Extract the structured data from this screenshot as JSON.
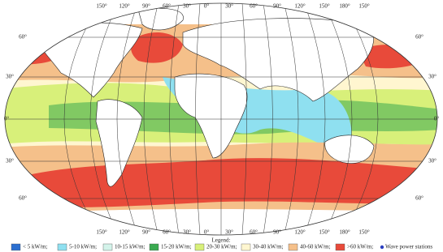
{
  "top_labels": [
    "150°",
    "120°",
    "90°",
    "60°",
    "30°",
    "0°",
    "30°",
    "60°",
    "90°",
    "120°",
    "150°",
    "180°",
    "150°"
  ],
  "bottom_labels": [
    "150°",
    "120°",
    "90°",
    "60°",
    "30°",
    "0°",
    "30°",
    "60°",
    "90°",
    "120°",
    "150°",
    "180°",
    "150°"
  ],
  "left_labels": [
    "60°",
    "30°",
    "0°",
    "30°",
    "60°"
  ],
  "right_labels": [
    "60°",
    "30°",
    "0°",
    "30°",
    "60°"
  ],
  "legend": {
    "title": "Legend:",
    "items": [
      {
        "label": "< 5 kW/m;",
        "color": "#2b6fd0"
      },
      {
        "label": "5-10 kW/m;",
        "color": "#8fe0f0"
      },
      {
        "label": "10-15 kW/m;",
        "color": "#d4f3ea"
      },
      {
        "label": "15-20 kW/m;",
        "color": "#3aaa50"
      },
      {
        "label": "20-30 kW/m;",
        "color": "#d8f07a"
      },
      {
        "label": "30-40 kW/m;",
        "color": "#fff6d0"
      },
      {
        "label": "40-60 kW/m;",
        "color": "#f5c08a"
      },
      {
        "label": ">60 kW/m;",
        "color": "#e84a3a"
      },
      {
        "label": "Wave power stations",
        "color": "#2b3fc0"
      }
    ]
  }
}
